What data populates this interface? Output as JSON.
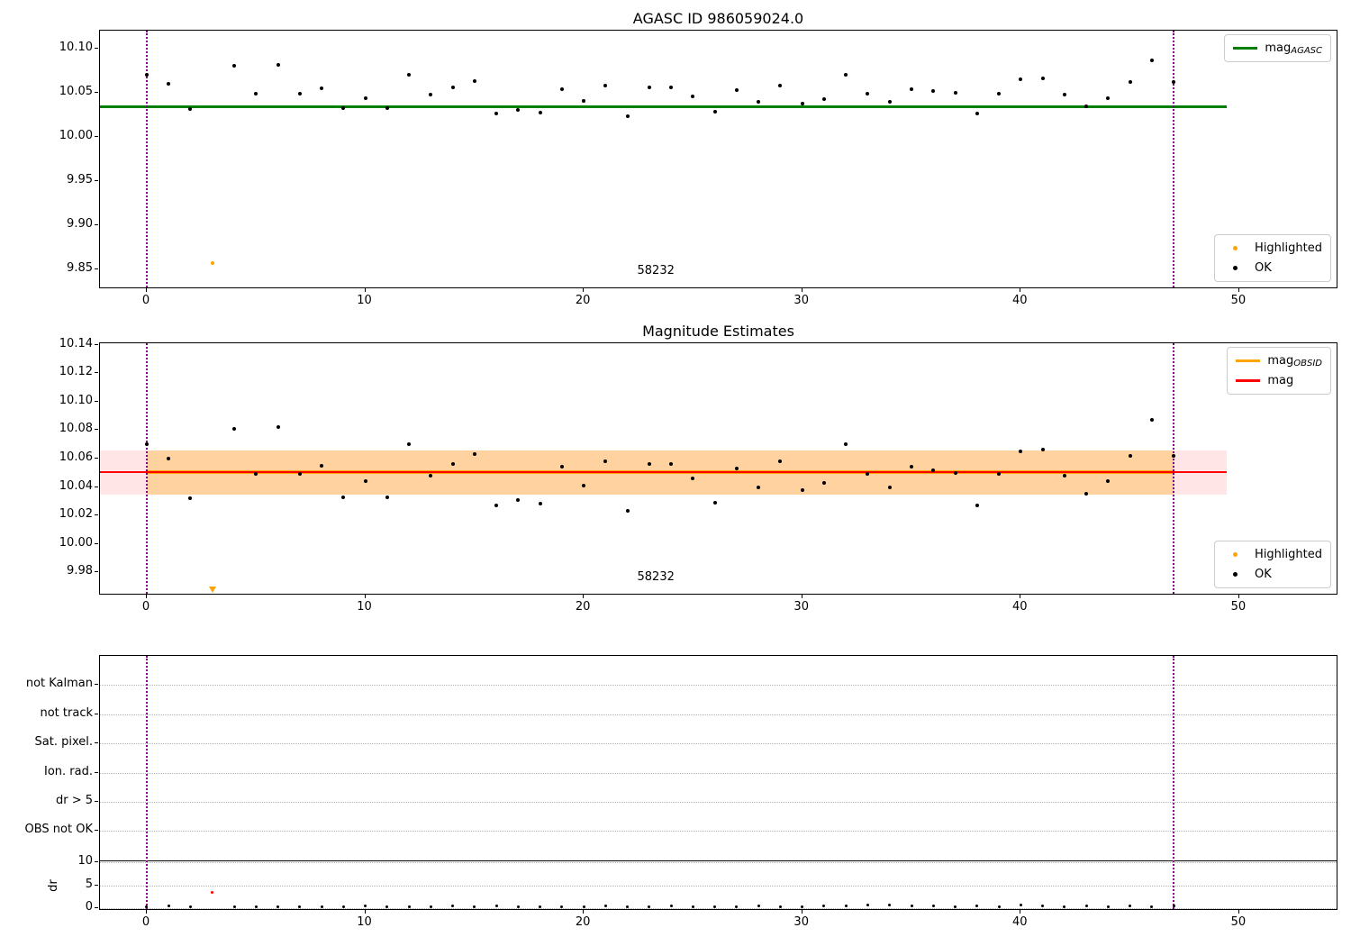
{
  "figure": {
    "background": "#ffffff"
  },
  "colors": {
    "ok": "#000000",
    "highlighted": "#FFA500",
    "agasc_line": "#008000",
    "mag_line": "#FF0000",
    "obsid_line": "#FFA500",
    "vline": "#800080",
    "grid": "#B3B3B3",
    "dr_flagged": "#FF0000"
  },
  "chart_data": [
    {
      "id": "agasc",
      "type": "scatter",
      "title": "AGASC ID 986059024.0",
      "xlim": [
        -2.143,
        54.54
      ],
      "ylim": [
        9.8276,
        10.1204
      ],
      "xticks": [
        0,
        10,
        20,
        30,
        40,
        50
      ],
      "yticks": [
        "10.10",
        "10.05",
        "10.00",
        "9.95",
        "9.90",
        "9.85"
      ],
      "x": [
        0,
        1,
        2,
        3,
        4,
        5,
        6,
        7,
        8,
        9,
        10,
        11,
        12,
        13,
        14,
        15,
        16,
        17,
        18,
        19,
        20,
        21,
        22,
        23,
        24,
        25,
        26,
        27,
        28,
        29,
        30,
        31,
        32,
        33,
        34,
        35,
        36,
        37,
        38,
        39,
        40,
        41,
        42,
        43,
        44,
        45,
        46,
        47
      ],
      "mags": [
        10.07,
        10.06,
        10.032,
        9.857,
        10.081,
        10.049,
        10.082,
        10.049,
        10.055,
        10.033,
        10.044,
        10.033,
        10.07,
        10.048,
        10.056,
        10.063,
        10.027,
        10.031,
        10.028,
        10.054,
        10.041,
        10.058,
        10.023,
        10.056,
        10.056,
        10.046,
        10.029,
        10.053,
        10.04,
        10.058,
        10.038,
        10.043,
        10.07,
        10.049,
        10.04,
        10.054,
        10.052,
        10.05,
        10.027,
        10.049,
        10.065,
        10.066,
        10.048,
        10.035,
        10.044,
        10.062,
        10.087,
        10.062
      ],
      "highlighted_index": 3,
      "agasc_mag_line": {
        "value": 10.0344,
        "span": [
          -2.143,
          49.43
        ],
        "color": "#008000"
      },
      "vlines": {
        "x": [
          0,
          47
        ],
        "color": "#800080"
      },
      "obsid_label": {
        "text": "58232",
        "x": 23.3
      },
      "legend_top": {
        "items": [
          {
            "main": "mag",
            "sub": "AGASC",
            "color": "#008000"
          }
        ]
      },
      "legend_points": {
        "items": [
          {
            "label": "Highlighted",
            "color": "#FFA500"
          },
          {
            "label": "OK",
            "color": "#000000"
          }
        ]
      }
    },
    {
      "id": "magest",
      "type": "scatter",
      "title": "Magnitude Estimates",
      "xlim": [
        -2.143,
        54.54
      ],
      "ylim": [
        9.9637,
        10.141
      ],
      "xticks": [
        0,
        10,
        20,
        30,
        40,
        50
      ],
      "yticks": [
        "10.14",
        "10.12",
        "10.10",
        "10.08",
        "10.06",
        "10.04",
        "10.02",
        "10.00",
        "9.98"
      ],
      "x": [
        0,
        1,
        2,
        3,
        4,
        5,
        6,
        7,
        8,
        9,
        10,
        11,
        12,
        13,
        14,
        15,
        16,
        17,
        18,
        19,
        20,
        21,
        22,
        23,
        24,
        25,
        26,
        27,
        28,
        29,
        30,
        31,
        32,
        33,
        34,
        35,
        36,
        37,
        38,
        39,
        40,
        41,
        42,
        43,
        44,
        45,
        46,
        47
      ],
      "mags": [
        10.07,
        10.06,
        10.032,
        9.857,
        10.081,
        10.049,
        10.082,
        10.049,
        10.055,
        10.033,
        10.044,
        10.033,
        10.07,
        10.048,
        10.056,
        10.063,
        10.027,
        10.031,
        10.028,
        10.054,
        10.041,
        10.058,
        10.023,
        10.056,
        10.056,
        10.046,
        10.029,
        10.053,
        10.04,
        10.058,
        10.038,
        10.043,
        10.07,
        10.049,
        10.04,
        10.054,
        10.052,
        10.05,
        10.027,
        10.049,
        10.065,
        10.066,
        10.048,
        10.035,
        10.044,
        10.062,
        10.087,
        10.062
      ],
      "highlighted_index": 3,
      "clipped_marker": {
        "x": 3,
        "symbol": "triangle-down",
        "color": "#FFA500"
      },
      "mag_line": {
        "value": 10.0507,
        "span": [
          -2.143,
          49.43
        ],
        "color": "#FF0000",
        "band": {
          "lo": 10.0347,
          "hi": 10.0657,
          "span": [
            -2.143,
            49.43
          ],
          "color": "#FF0000",
          "alpha": 0.1
        }
      },
      "obsid_line": {
        "value": 10.0507,
        "span": [
          0,
          47
        ],
        "color": "#FFA500",
        "band": {
          "lo": 10.0347,
          "hi": 10.0657,
          "span": [
            0,
            47
          ],
          "color": "#FFA500",
          "alpha": 0.3
        }
      },
      "vlines": {
        "x": [
          0,
          47
        ],
        "color": "#800080"
      },
      "obsid_label": {
        "text": "58232",
        "x": 23.3
      },
      "legend_top": {
        "items": [
          {
            "main": "mag",
            "sub": "OBSID",
            "color": "#FFA500"
          },
          {
            "main": "mag",
            "sub": "",
            "color": "#FF0000"
          }
        ]
      },
      "legend_points": {
        "items": [
          {
            "label": "Highlighted",
            "color": "#FFA500"
          },
          {
            "label": "OK",
            "color": "#000000"
          }
        ]
      }
    },
    {
      "id": "flags",
      "type": "scatter",
      "title": "",
      "xlim": [
        -2.143,
        54.54
      ],
      "xticks": [
        0,
        10,
        20,
        30,
        40,
        50
      ],
      "flag_rows": [
        "not Kalman",
        "not track",
        "Sat. pixel.",
        "Ion. rad.",
        "dr > 5",
        "OBS not OK"
      ],
      "dr_ticks": [
        10,
        5,
        0
      ],
      "dr_axis_label": "dr",
      "dr_threshold": 10,
      "x": [
        0,
        1,
        2,
        3,
        4,
        5,
        6,
        7,
        8,
        9,
        10,
        11,
        12,
        13,
        14,
        15,
        16,
        17,
        18,
        19,
        20,
        21,
        22,
        23,
        24,
        25,
        26,
        27,
        28,
        29,
        30,
        31,
        32,
        33,
        34,
        35,
        36,
        37,
        38,
        39,
        40,
        41,
        42,
        43,
        44,
        45,
        46,
        47
      ],
      "dr_values": [
        0.35,
        0.45,
        0.3,
        3.5,
        0.3,
        0.4,
        0.35,
        0.3,
        0.4,
        0.3,
        0.5,
        0.4,
        0.3,
        0.35,
        0.55,
        0.4,
        0.45,
        0.3,
        0.35,
        0.4,
        0.3,
        0.5,
        0.35,
        0.4,
        0.45,
        0.3,
        0.4,
        0.35,
        0.5,
        0.4,
        0.35,
        0.55,
        0.45,
        0.7,
        0.75,
        0.6,
        0.5,
        0.4,
        0.45,
        0.35,
        0.8,
        0.55,
        0.4,
        0.45,
        0.35,
        0.5,
        0.4,
        0.45
      ],
      "flagged_index": 3,
      "vlines": {
        "x": [
          0,
          47
        ],
        "color": "#800080"
      }
    }
  ]
}
